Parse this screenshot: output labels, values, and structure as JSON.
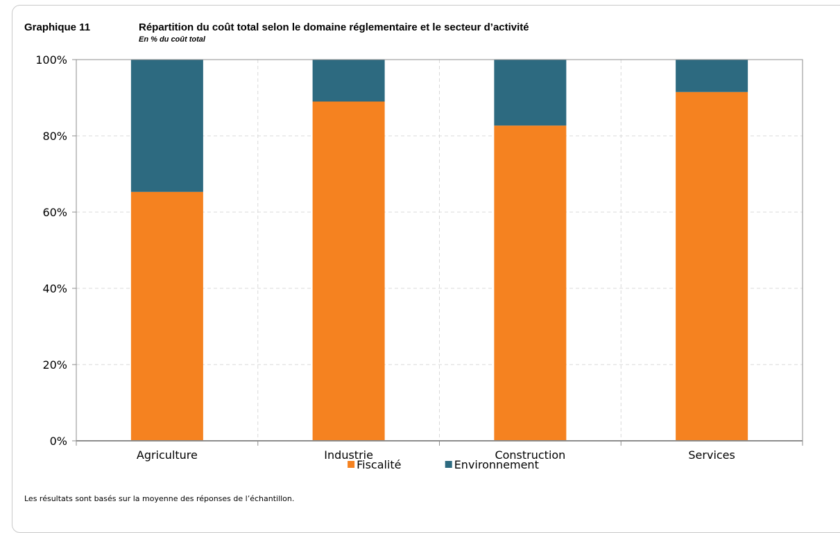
{
  "header": {
    "number": "Graphique 11",
    "title": "Répartition du coût total selon le domaine réglementaire et le secteur d’activité",
    "subtitle": "En % du coût total"
  },
  "footnote": "Les résultats sont basés sur la moyenne des réponses de l’échantillon.",
  "chart_data": {
    "type": "bar",
    "stacked": true,
    "categories": [
      "Agriculture",
      "Industrie",
      "Construction",
      "Services"
    ],
    "series": [
      {
        "name": "Fiscalité",
        "color": "#f58220",
        "values": [
          65.3,
          89.0,
          82.7,
          91.5
        ]
      },
      {
        "name": "Environnement",
        "color": "#2d6a80",
        "values": [
          34.7,
          11.0,
          17.3,
          8.5
        ]
      }
    ],
    "ylim": [
      0,
      100
    ],
    "yticks": [
      "0%",
      "20%",
      "40%",
      "60%",
      "80%",
      "100%"
    ],
    "grid": true,
    "legend": "bottom-center"
  }
}
